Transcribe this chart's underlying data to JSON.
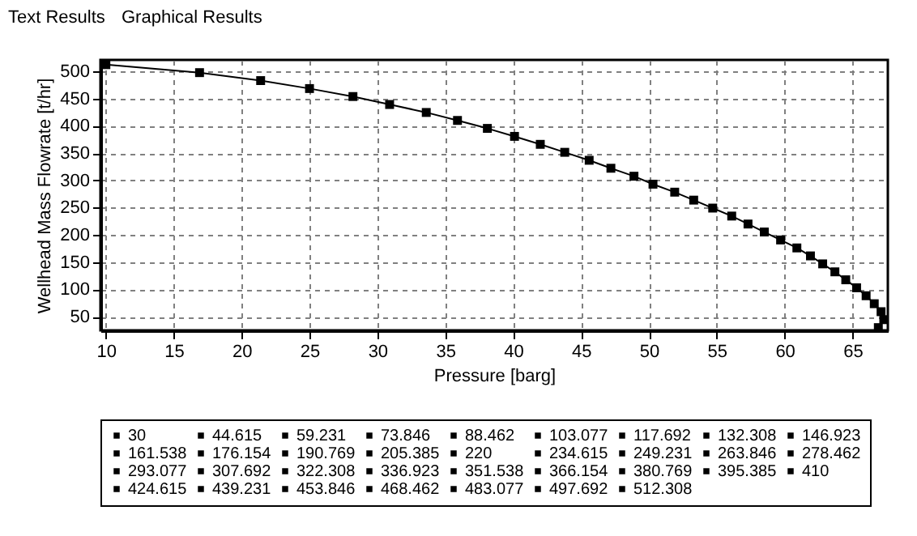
{
  "chart_data": {
    "type": "line",
    "xlabel": "Pressure [barg]",
    "ylabel": "Wellhead Mass Flowrate [t/hr]",
    "annotations": [
      "Text Results",
      "Graphical Results"
    ],
    "xlim": [
      9.6,
      67.6
    ],
    "ylim": [
      25,
      521
    ],
    "xticks": [
      10,
      15,
      20,
      25,
      30,
      35,
      40,
      45,
      50,
      55,
      60,
      65
    ],
    "yticks": [
      50,
      100,
      150,
      200,
      250,
      300,
      350,
      400,
      450,
      500
    ],
    "grid": true,
    "legend": "bottom",
    "line_style": "solid",
    "series": [
      {
        "marker": "none",
        "color": "#000000",
        "x": [
          10,
          16.9,
          21.4,
          25.0,
          28.2,
          30.9,
          33.6,
          35.9,
          38.1,
          40.1,
          42.0,
          43.8,
          45.6,
          47.2,
          48.9,
          50.3,
          51.9,
          53.3,
          54.7,
          56.1,
          57.3,
          58.5,
          59.7,
          60.9,
          61.9,
          62.8,
          63.7,
          64.5,
          65.3,
          66.0,
          66.6,
          67.1,
          67.3,
          66.9
        ],
        "values": [
          512.308,
          497.692,
          483.077,
          468.462,
          453.846,
          439.231,
          424.615,
          410,
          395.385,
          380.769,
          366.154,
          351.538,
          336.923,
          322.308,
          307.692,
          293.077,
          278.462,
          263.846,
          249.231,
          234.615,
          220,
          205.385,
          190.769,
          176.154,
          161.538,
          146.923,
          132.308,
          117.692,
          103.077,
          88.462,
          73.846,
          59.231,
          44.615,
          30
        ]
      },
      {
        "type": "scatter",
        "marker": "square",
        "name": "30",
        "color": "#000000",
        "x": [
          66.9
        ],
        "values": [
          30
        ]
      },
      {
        "type": "scatter",
        "marker": "square",
        "name": "44.615",
        "color": "#000000",
        "x": [
          67.3
        ],
        "values": [
          44.615
        ]
      },
      {
        "type": "scatter",
        "marker": "square",
        "name": "59.231",
        "color": "#000000",
        "x": [
          67.1
        ],
        "values": [
          59.231
        ]
      },
      {
        "type": "scatter",
        "marker": "square",
        "name": "73.846",
        "color": "#000000",
        "x": [
          66.6
        ],
        "values": [
          73.846
        ]
      },
      {
        "type": "scatter",
        "marker": "square",
        "name": "88.462",
        "color": "#000000",
        "x": [
          66.0
        ],
        "values": [
          88.462
        ]
      },
      {
        "type": "scatter",
        "marker": "square",
        "name": "103.077",
        "color": "#000000",
        "x": [
          65.3
        ],
        "values": [
          103.077
        ]
      },
      {
        "type": "scatter",
        "marker": "square",
        "name": "117.692",
        "color": "#000000",
        "x": [
          64.5
        ],
        "values": [
          117.692
        ]
      },
      {
        "type": "scatter",
        "marker": "square",
        "name": "132.308",
        "color": "#000000",
        "x": [
          63.7
        ],
        "values": [
          132.308
        ]
      },
      {
        "type": "scatter",
        "marker": "square",
        "name": "146.923",
        "color": "#000000",
        "x": [
          62.8
        ],
        "values": [
          146.923
        ]
      },
      {
        "type": "scatter",
        "marker": "square",
        "name": "161.538",
        "color": "#000000",
        "x": [
          61.9
        ],
        "values": [
          161.538
        ]
      },
      {
        "type": "scatter",
        "marker": "square",
        "name": "176.154",
        "color": "#000000",
        "x": [
          60.9
        ],
        "values": [
          176.154
        ]
      },
      {
        "type": "scatter",
        "marker": "square",
        "name": "190.769",
        "color": "#000000",
        "x": [
          59.7
        ],
        "values": [
          190.769
        ]
      },
      {
        "type": "scatter",
        "marker": "square",
        "name": "205.385",
        "color": "#000000",
        "x": [
          58.5
        ],
        "values": [
          205.385
        ]
      },
      {
        "type": "scatter",
        "marker": "square",
        "name": "220",
        "color": "#000000",
        "x": [
          57.3
        ],
        "values": [
          220
        ]
      },
      {
        "type": "scatter",
        "marker": "square",
        "name": "234.615",
        "color": "#000000",
        "x": [
          56.1
        ],
        "values": [
          234.615
        ]
      },
      {
        "type": "scatter",
        "marker": "square",
        "name": "249.231",
        "color": "#000000",
        "x": [
          54.7
        ],
        "values": [
          249.231
        ]
      },
      {
        "type": "scatter",
        "marker": "square",
        "name": "263.846",
        "color": "#000000",
        "x": [
          53.3
        ],
        "values": [
          263.846
        ]
      },
      {
        "type": "scatter",
        "marker": "square",
        "name": "278.462",
        "color": "#000000",
        "x": [
          51.9
        ],
        "values": [
          278.462
        ]
      },
      {
        "type": "scatter",
        "marker": "square",
        "name": "293.077",
        "color": "#000000",
        "x": [
          50.3
        ],
        "values": [
          293.077
        ]
      },
      {
        "type": "scatter",
        "marker": "square",
        "name": "307.692",
        "color": "#000000",
        "x": [
          48.9
        ],
        "values": [
          307.692
        ]
      },
      {
        "type": "scatter",
        "marker": "square",
        "name": "322.308",
        "color": "#000000",
        "x": [
          47.2
        ],
        "values": [
          322.308
        ]
      },
      {
        "type": "scatter",
        "marker": "square",
        "name": "336.923",
        "color": "#000000",
        "x": [
          45.6
        ],
        "values": [
          336.923
        ]
      },
      {
        "type": "scatter",
        "marker": "square",
        "name": "351.538",
        "color": "#000000",
        "x": [
          43.8
        ],
        "values": [
          351.538
        ]
      },
      {
        "type": "scatter",
        "marker": "square",
        "name": "366.154",
        "color": "#000000",
        "x": [
          42.0
        ],
        "values": [
          366.154
        ]
      },
      {
        "type": "scatter",
        "marker": "square",
        "name": "380.769",
        "color": "#000000",
        "x": [
          40.1
        ],
        "values": [
          380.769
        ]
      },
      {
        "type": "scatter",
        "marker": "square",
        "name": "395.385",
        "color": "#000000",
        "x": [
          38.1
        ],
        "values": [
          395.385
        ]
      },
      {
        "type": "scatter",
        "marker": "square",
        "name": "410",
        "color": "#000000",
        "x": [
          35.9
        ],
        "values": [
          410
        ]
      },
      {
        "type": "scatter",
        "marker": "square",
        "name": "424.615",
        "color": "#000000",
        "x": [
          33.6
        ],
        "values": [
          424.615
        ]
      },
      {
        "type": "scatter",
        "marker": "square",
        "name": "439.231",
        "color": "#000000",
        "x": [
          30.9
        ],
        "values": [
          439.231
        ]
      },
      {
        "type": "scatter",
        "marker": "square",
        "name": "453.846",
        "color": "#000000",
        "x": [
          28.2
        ],
        "values": [
          453.846
        ]
      },
      {
        "type": "scatter",
        "marker": "square",
        "name": "468.462",
        "color": "#000000",
        "x": [
          25.0
        ],
        "values": [
          468.462
        ]
      },
      {
        "type": "scatter",
        "marker": "square",
        "name": "483.077",
        "color": "#000000",
        "x": [
          21.4
        ],
        "values": [
          483.077
        ]
      },
      {
        "type": "scatter",
        "marker": "square",
        "name": "497.692",
        "color": "#000000",
        "x": [
          16.9
        ],
        "values": [
          497.692
        ]
      },
      {
        "type": "scatter",
        "marker": "square",
        "name": "512.308",
        "color": "#000000",
        "x": [
          10
        ],
        "values": [
          512.308
        ]
      }
    ]
  }
}
